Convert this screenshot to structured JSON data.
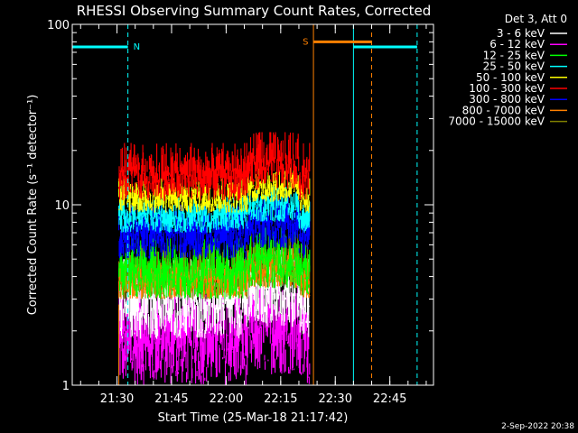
{
  "chart_data": {
    "type": "line",
    "title": "RHESSI Observing Summary Count Rates, Corrected",
    "xlabel": "Start Time (25-Mar-18 21:17:42)",
    "ylabel": "Corrected Count Rate (s⁻¹ detector⁻¹)",
    "y_scale": "log",
    "ylim": [
      1,
      100
    ],
    "xlim": [
      "21:17:42",
      "22:57:00"
    ],
    "x_ticks": [
      "21:30",
      "21:45",
      "22:00",
      "22:15",
      "22:30",
      "22:45"
    ],
    "y_ticks": [
      "1",
      "10",
      "100"
    ],
    "legend_title": "Det 3, Att 0",
    "legend_position": "right",
    "data_window": [
      "21:30:30",
      "22:23:00"
    ],
    "series": [
      {
        "name": "3 - 6 keV",
        "color": "#ffffff",
        "typical_range": [
          1.8,
          5.0
        ]
      },
      {
        "name": "6 - 12 keV",
        "color": "#ff00ff",
        "typical_range": [
          1.0,
          3.9
        ]
      },
      {
        "name": "12 - 25 keV",
        "color": "#00ff00",
        "typical_range": [
          3.0,
          6.5
        ]
      },
      {
        "name": "25 - 50 keV",
        "color": "#00ffff",
        "typical_range": [
          7.0,
          11.0
        ]
      },
      {
        "name": "50 - 100 keV",
        "color": "#ffff00",
        "typical_range": [
          9.0,
          14.0
        ]
      },
      {
        "name": "100 - 300 keV",
        "color": "#ff0000",
        "typical_range": [
          10.5,
          22.0
        ]
      },
      {
        "name": "300 - 800 keV",
        "color": "#0000ff",
        "typical_range": [
          5.0,
          10.0
        ]
      },
      {
        "name": "800 - 7000 keV",
        "color": "#ff8000",
        "typical_range": [
          3.0,
          5.0
        ]
      },
      {
        "name": "7000 - 15000 keV",
        "color": "#808000",
        "typical_range": [
          3.0,
          6.0
        ]
      }
    ],
    "flags": [
      {
        "label": "N",
        "color": "#00ffff",
        "level": 75,
        "intervals": [
          [
            "21:17:42",
            "21:33:00"
          ],
          [
            "22:35:00",
            "22:52:30"
          ]
        ]
      },
      {
        "label": "S",
        "color": "#ff8000",
        "level": 80,
        "intervals": [
          [
            "22:24:00",
            "22:40:00"
          ]
        ]
      }
    ]
  },
  "footer": {
    "date": "2-Sep-2022 20:38"
  }
}
